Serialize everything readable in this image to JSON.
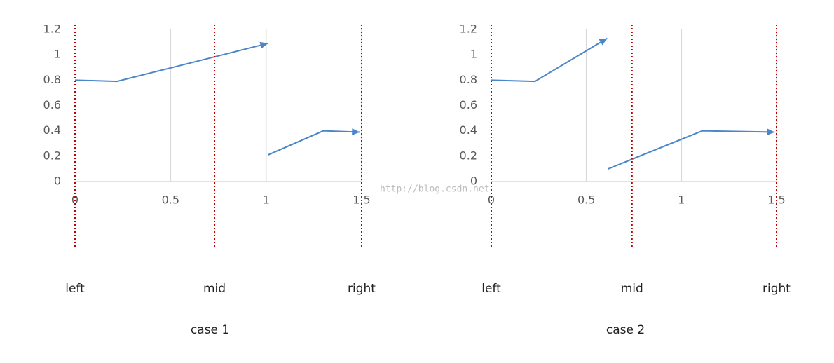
{
  "chart_data": [
    {
      "type": "line",
      "caption": "case 1",
      "xlim": [
        0,
        1.5
      ],
      "xticks": [
        0,
        0.5,
        1,
        1.5
      ],
      "ylim": [
        0,
        1.2
      ],
      "yticks": [
        0,
        0.2,
        0.4,
        0.6,
        0.8,
        1,
        1.2
      ],
      "grid": "x",
      "series": [
        {
          "color": "#4a86c8",
          "x": [
            0,
            0.22,
            1.01
          ],
          "values": [
            0.8,
            0.79,
            1.09
          ]
        },
        {
          "color": "#4a86c8",
          "x": [
            1.01,
            1.3,
            1.49
          ],
          "values": [
            0.21,
            0.4,
            0.39
          ]
        }
      ],
      "markers": [
        {
          "x": 0,
          "label": "left"
        },
        {
          "x": 0.73,
          "label": "mid"
        },
        {
          "x": 1.5,
          "label": "right"
        }
      ],
      "marker_color": "#c00000"
    },
    {
      "type": "line",
      "caption": "case 2",
      "xlim": [
        0,
        1.5
      ],
      "xticks": [
        0,
        0.5,
        1,
        1.5
      ],
      "ylim": [
        0,
        1.2
      ],
      "yticks": [
        0,
        0.2,
        0.4,
        0.6,
        0.8,
        1,
        1.2
      ],
      "grid": "x",
      "series": [
        {
          "color": "#4a86c8",
          "x": [
            0,
            0.23,
            0.61
          ],
          "values": [
            0.8,
            0.79,
            1.13
          ]
        },
        {
          "color": "#4a86c8",
          "x": [
            0.615,
            1.11,
            1.49
          ],
          "values": [
            0.1,
            0.4,
            0.39
          ]
        }
      ],
      "markers": [
        {
          "x": 0,
          "label": "left"
        },
        {
          "x": 0.74,
          "label": "mid"
        },
        {
          "x": 1.5,
          "label": "right"
        }
      ],
      "marker_color": "#c00000"
    }
  ],
  "watermark": "http://blog.csdn.net"
}
